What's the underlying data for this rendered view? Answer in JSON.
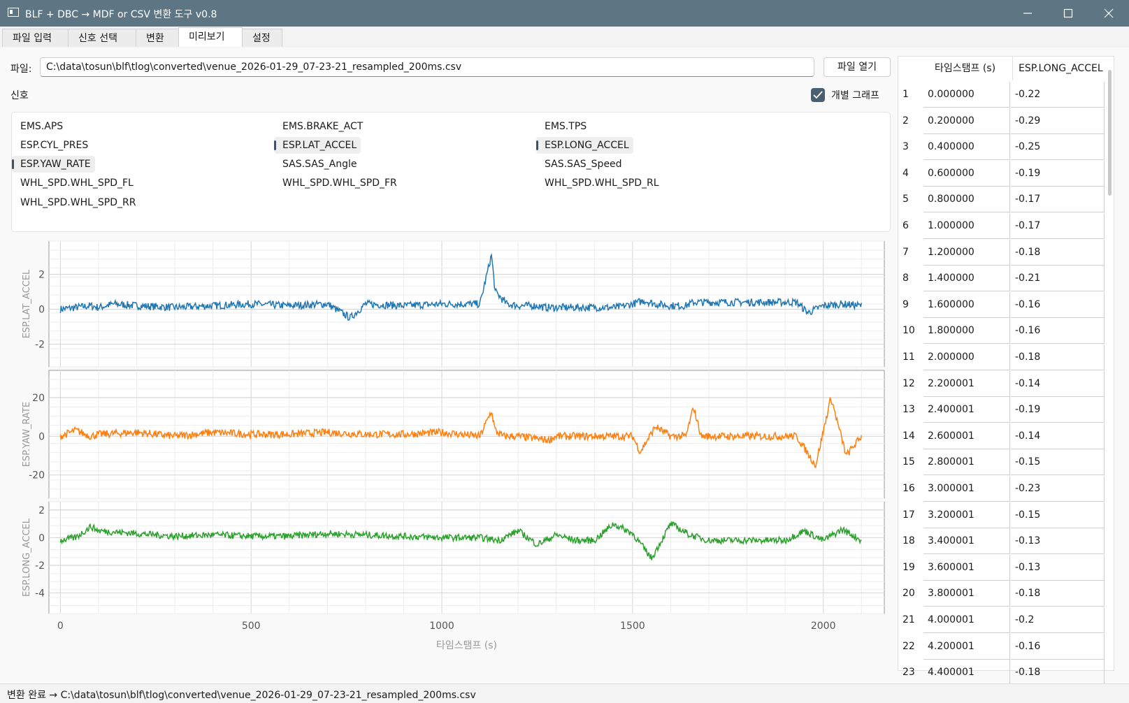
{
  "window": {
    "title": "BLF + DBC → MDF or CSV 변환 도구 v0.8"
  },
  "tabs": [
    {
      "label": "파일 입력"
    },
    {
      "label": "신호 선택"
    },
    {
      "label": "변환"
    },
    {
      "label": "미리보기",
      "active": true
    },
    {
      "label": "설정"
    }
  ],
  "file": {
    "label": "파일:",
    "path": "C:\\data\\tosun\\blf\\tlog\\converted\\venue_2026-01-29_07-23-21_resampled_200ms.csv",
    "open_button": "파일 열기"
  },
  "signals": {
    "label": "신호",
    "individual_graph_label": "개별 그래프",
    "individual_graph_checked": true,
    "items": [
      {
        "name": "EMS.APS",
        "selected": false
      },
      {
        "name": "EMS.BRAKE_ACT",
        "selected": false
      },
      {
        "name": "EMS.TPS",
        "selected": false
      },
      {
        "name": "ESP.CYL_PRES",
        "selected": false
      },
      {
        "name": "ESP.LAT_ACCEL",
        "selected": true
      },
      {
        "name": "ESP.LONG_ACCEL",
        "selected": true
      },
      {
        "name": "ESP.YAW_RATE",
        "selected": true
      },
      {
        "name": "SAS.SAS_Angle",
        "selected": false
      },
      {
        "name": "SAS.SAS_Speed",
        "selected": false
      },
      {
        "name": "WHL_SPD.WHL_SPD_FL",
        "selected": false
      },
      {
        "name": "WHL_SPD.WHL_SPD_FR",
        "selected": false
      },
      {
        "name": "WHL_SPD.WHL_SPD_RL",
        "selected": false
      },
      {
        "name": "WHL_SPD.WHL_SPD_RR",
        "selected": false
      }
    ]
  },
  "chart_data": [
    {
      "type": "line",
      "ylabel": "ESP.LAT_ACCEL",
      "color": "#1f77b4",
      "xlim": [
        -30,
        2160
      ],
      "ylim": [
        -3.3,
        3.9
      ],
      "yticks": [
        2,
        0,
        -2
      ],
      "xticks": [],
      "series": [
        {
          "x": [
            0,
            40,
            80,
            100,
            140,
            200,
            300,
            400,
            500,
            600,
            700,
            760,
            800,
            900,
            1000,
            1080,
            1100,
            1130,
            1140,
            1170,
            1200,
            1250,
            1270,
            1300,
            1400,
            1460,
            1500,
            1530,
            1560,
            1600,
            1640,
            1660,
            1680,
            1700,
            1800,
            1900,
            1930,
            1960,
            2000,
            2050,
            2100
          ],
          "y": [
            0,
            0.1,
            0.2,
            0.1,
            0.3,
            0.2,
            0.1,
            0.2,
            0.3,
            0.2,
            0.3,
            -0.5,
            0.3,
            0.2,
            0.3,
            0.3,
            0.3,
            3.1,
            1.0,
            0.3,
            0.2,
            0.2,
            0.1,
            0.1,
            0.1,
            0.1,
            0.3,
            0.5,
            0.3,
            0.2,
            0.2,
            0.4,
            0.4,
            0.4,
            0.4,
            0.4,
            0.4,
            -0.2,
            0.2,
            0.3,
            0.2
          ]
        }
      ]
    },
    {
      "type": "line",
      "ylabel": "ESP.YAW_RATE",
      "color": "#ff7f0e",
      "xlim": [
        -30,
        2160
      ],
      "ylim": [
        -32,
        34
      ],
      "yticks": [
        20,
        0,
        -20
      ],
      "xticks": [],
      "series": [
        {
          "x": [
            0,
            40,
            80,
            100,
            200,
            300,
            400,
            500,
            600,
            700,
            800,
            900,
            1000,
            1100,
            1130,
            1140,
            1160,
            1200,
            1280,
            1300,
            1400,
            1500,
            1520,
            1560,
            1600,
            1640,
            1660,
            1680,
            1800,
            1930,
            1980,
            2020,
            2060,
            2100
          ],
          "y": [
            0,
            3,
            0,
            1,
            2,
            0,
            2,
            1,
            1,
            2,
            1,
            1,
            2,
            0,
            13,
            3,
            0,
            0,
            -2,
            0,
            0,
            0,
            -8,
            5,
            0,
            0,
            15,
            0,
            0,
            0,
            -15,
            20,
            -10,
            0
          ]
        }
      ]
    },
    {
      "type": "line",
      "ylabel": "ESP.LONG_ACCEL",
      "color": "#2ca02c",
      "xlim": [
        -30,
        2160
      ],
      "ylim": [
        -5.5,
        2.6
      ],
      "yticks": [
        2,
        0,
        -2,
        -4
      ],
      "xlabel": "타임스탬프 (s)",
      "xticks": [
        0,
        500,
        1000,
        1500,
        2000
      ],
      "series": [
        {
          "x": [
            0,
            40,
            80,
            100,
            200,
            300,
            400,
            500,
            600,
            700,
            800,
            900,
            1000,
            1100,
            1150,
            1200,
            1250,
            1300,
            1350,
            1400,
            1450,
            1500,
            1550,
            1600,
            1650,
            1700,
            1800,
            1900,
            1950,
            2000,
            2050,
            2100
          ],
          "y": [
            -0.2,
            0,
            0.8,
            0.5,
            0.3,
            0.1,
            0.2,
            0.1,
            0.1,
            0.3,
            0.2,
            0.1,
            0.0,
            0.0,
            -0.2,
            0.5,
            -0.5,
            0.2,
            -0.2,
            -0.2,
            1.0,
            0.3,
            -1.5,
            1.0,
            0.2,
            -0.2,
            -0.2,
            -0.2,
            0.5,
            -0.2,
            0.6,
            -0.2
          ]
        }
      ]
    }
  ],
  "table": {
    "columns": [
      "타임스탬프 (s)",
      "ESP.LONG_ACCEL"
    ],
    "rows": [
      [
        "1",
        "0.000000",
        "-0.22"
      ],
      [
        "2",
        "0.200000",
        "-0.29"
      ],
      [
        "3",
        "0.400000",
        "-0.25"
      ],
      [
        "4",
        "0.600000",
        "-0.19"
      ],
      [
        "5",
        "0.800000",
        "-0.17"
      ],
      [
        "6",
        "1.000000",
        "-0.17"
      ],
      [
        "7",
        "1.200000",
        "-0.18"
      ],
      [
        "8",
        "1.400000",
        "-0.21"
      ],
      [
        "9",
        "1.600000",
        "-0.16"
      ],
      [
        "10",
        "1.800000",
        "-0.16"
      ],
      [
        "11",
        "2.000000",
        "-0.18"
      ],
      [
        "12",
        "2.200001",
        "-0.14"
      ],
      [
        "13",
        "2.400001",
        "-0.19"
      ],
      [
        "14",
        "2.600001",
        "-0.14"
      ],
      [
        "15",
        "2.800001",
        "-0.15"
      ],
      [
        "16",
        "3.000001",
        "-0.23"
      ],
      [
        "17",
        "3.200001",
        "-0.15"
      ],
      [
        "18",
        "3.400001",
        "-0.13"
      ],
      [
        "19",
        "3.600001",
        "-0.13"
      ],
      [
        "20",
        "3.800001",
        "-0.18"
      ],
      [
        "21",
        "4.000001",
        "-0.2"
      ],
      [
        "22",
        "4.200001",
        "-0.16"
      ],
      [
        "23",
        "4.400001",
        "-0.18"
      ]
    ]
  },
  "status": {
    "text": "변환 완료 → C:\\data\\tosun\\blf\\tlog\\converted\\venue_2026-01-29_07-23-21_resampled_200ms.csv"
  }
}
